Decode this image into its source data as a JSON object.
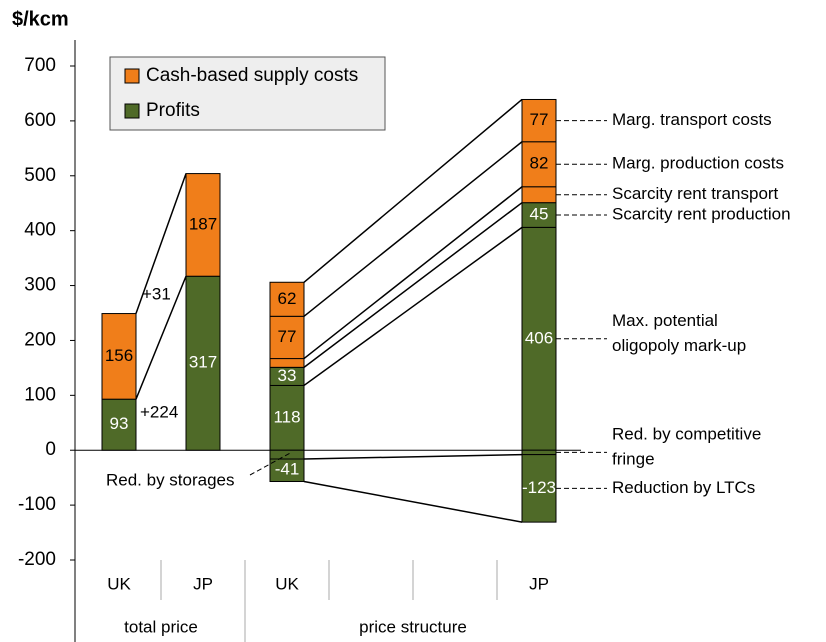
{
  "chart_data": {
    "type": "stacked_waterfall",
    "title": "$/kcm",
    "ylim": [
      -200,
      700
    ],
    "yticks": [
      -200,
      -100,
      0,
      100,
      200,
      300,
      400,
      500,
      600,
      700
    ],
    "categories": [
      "UK",
      "JP",
      "UK",
      null,
      null,
      "JP"
    ],
    "groups": [
      {
        "label": "total price",
        "start": 0,
        "end": 2
      },
      {
        "label": "price structure",
        "start": 2,
        "end": 6
      }
    ],
    "series": [
      {
        "name": "Cash-based supply costs",
        "color": "#f07e1a"
      },
      {
        "name": "Profits",
        "color": "#4f6a28"
      }
    ],
    "legend": "upper left",
    "stacks": [
      {
        "category": 0,
        "segments": [
          {
            "series": 1,
            "value": 93
          },
          {
            "series": 0,
            "value": 156
          }
        ]
      },
      {
        "category": 1,
        "segments": [
          {
            "series": 1,
            "value": 317
          },
          {
            "series": 0,
            "value": 187
          }
        ]
      },
      {
        "category": 2,
        "segments": [
          {
            "series": 1,
            "value": 118
          },
          {
            "series": 1,
            "value": 33
          },
          {
            "series": 0,
            "value": 16,
            "label": false
          },
          {
            "series": 0,
            "value": 77
          },
          {
            "series": 0,
            "value": 62
          },
          {
            "series": 1,
            "value": -16,
            "label": false
          },
          {
            "series": 1,
            "value": -41
          }
        ]
      },
      {
        "category": 5,
        "segments": [
          {
            "series": 1,
            "value": 406,
            "note": [
              "Max. potential",
              "oligopoly mark-up"
            ]
          },
          {
            "series": 1,
            "value": 45,
            "note": [
              "Scarcity rent production"
            ]
          },
          {
            "series": 0,
            "value": 29,
            "label": false,
            "note": [
              "Scarcity rent transport"
            ]
          },
          {
            "series": 0,
            "value": 82,
            "note": [
              "Marg. production costs"
            ]
          },
          {
            "series": 0,
            "value": 77,
            "note": [
              "Marg. transport costs"
            ]
          },
          {
            "series": 1,
            "value": -8,
            "label": false,
            "note": [
              "Red. by competitive",
              "fringe"
            ]
          },
          {
            "series": 1,
            "value": -123,
            "note": [
              "Reduction by LTCs"
            ]
          }
        ]
      }
    ],
    "annotations": [
      "+31",
      "+224",
      "Red. by storages"
    ]
  }
}
